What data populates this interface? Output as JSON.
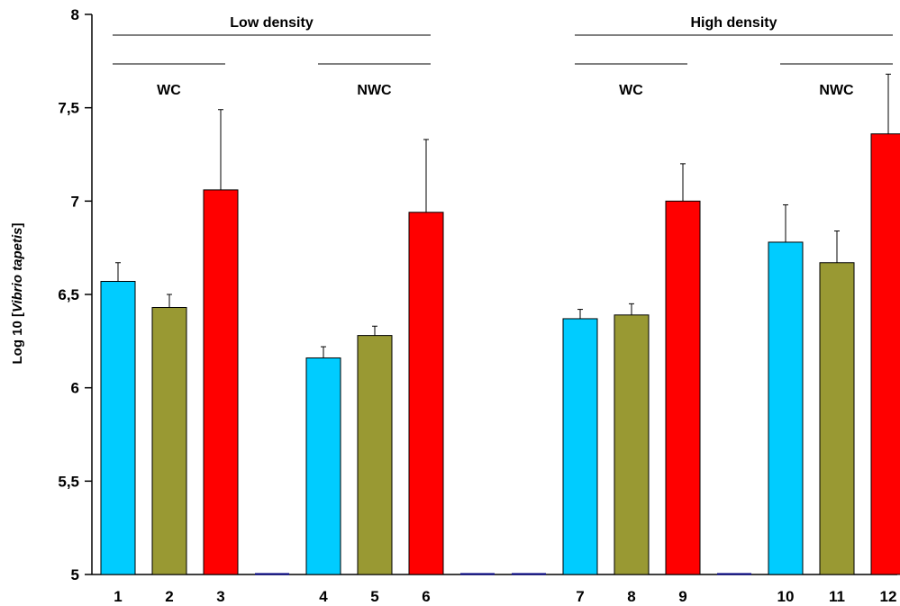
{
  "chart_data": {
    "type": "bar",
    "ylabel_parts": {
      "prefix": "Log 10 [",
      "italic": "Vibrio tapetis",
      "suffix": "]"
    },
    "ylim": [
      5,
      8
    ],
    "y_ticks": [
      {
        "value": 5,
        "label": "5"
      },
      {
        "value": 5.5,
        "label": "5,5"
      },
      {
        "value": 6,
        "label": "6"
      },
      {
        "value": 6.5,
        "label": "6,5"
      },
      {
        "value": 7,
        "label": "7"
      },
      {
        "value": 7.5,
        "label": "7,5"
      },
      {
        "value": 8,
        "label": "8"
      }
    ],
    "grid": false,
    "colors": {
      "cyan": "#00ccff",
      "olive": "#999933",
      "red": "#ff0000",
      "gap": "#000080"
    },
    "bars": [
      {
        "label": "1",
        "value": 6.57,
        "error": 0.1,
        "color": "cyan"
      },
      {
        "label": "2",
        "value": 6.43,
        "error": 0.07,
        "color": "olive"
      },
      {
        "label": "3",
        "value": 7.06,
        "error": 0.43,
        "color": "red"
      },
      {
        "label": "",
        "value": 5.0,
        "error": 0,
        "color": "gap"
      },
      {
        "label": "4",
        "value": 6.16,
        "error": 0.06,
        "color": "cyan"
      },
      {
        "label": "5",
        "value": 6.28,
        "error": 0.05,
        "color": "olive"
      },
      {
        "label": "6",
        "value": 6.94,
        "error": 0.39,
        "color": "red"
      },
      {
        "label": "",
        "value": 5.0,
        "error": 0,
        "color": "gap"
      },
      {
        "label": "",
        "value": 5.0,
        "error": 0,
        "color": "gap"
      },
      {
        "label": "7",
        "value": 6.37,
        "error": 0.05,
        "color": "cyan"
      },
      {
        "label": "8",
        "value": 6.39,
        "error": 0.06,
        "color": "olive"
      },
      {
        "label": "9",
        "value": 7.0,
        "error": 0.2,
        "color": "red"
      },
      {
        "label": "",
        "value": 5.0,
        "error": 0,
        "color": "gap"
      },
      {
        "label": "10",
        "value": 6.78,
        "error": 0.2,
        "color": "cyan"
      },
      {
        "label": "11",
        "value": 6.67,
        "error": 0.17,
        "color": "olive"
      },
      {
        "label": "12",
        "value": 7.36,
        "error": 0.32,
        "color": "red"
      }
    ],
    "annotations": [
      {
        "text": "Low density",
        "span": [
          1,
          6
        ],
        "level": "top"
      },
      {
        "text": "High density",
        "span": [
          7,
          12
        ],
        "level": "top"
      },
      {
        "text": "WC",
        "span": [
          1,
          3
        ],
        "level": "sub"
      },
      {
        "text": "NWC",
        "span": [
          4,
          6
        ],
        "level": "sub"
      },
      {
        "text": "WC",
        "span": [
          7,
          9
        ],
        "level": "sub"
      },
      {
        "text": "NWC",
        "span": [
          10,
          12
        ],
        "level": "sub"
      }
    ]
  }
}
